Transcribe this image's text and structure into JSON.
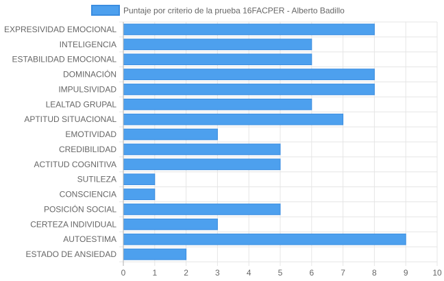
{
  "colors": {
    "bar_fill": "#4da0ee",
    "bar_stroke": "#3b8de0",
    "grid": "#e5e5e5",
    "axis": "#b0b0b0",
    "text": "#666666"
  },
  "chart_data": {
    "type": "bar",
    "orientation": "horizontal",
    "categories": [
      "EXPRESIVIDAD EMOCIONAL",
      "INTELIGENCIA",
      "ESTABILIDAD EMOCIONAL",
      "DOMINACIÓN",
      "IMPULSIVIDAD",
      "LEALTAD GRUPAL",
      "APTITUD SITUACIONAL",
      "EMOTIVIDAD",
      "CREDIBILIDAD",
      "ACTITUD COGNITIVA",
      "SUTILEZA",
      "CONSCIENCIA",
      "POSICIÓN SOCIAL",
      "CERTEZA INDIVIDUAL",
      "AUTOESTIMA",
      "ESTADO DE ANSIEDAD"
    ],
    "series": [
      {
        "name": "Puntaje por criterio de la prueba 16FACPER - Alberto Badillo",
        "values": [
          8,
          6,
          6,
          8,
          8,
          6,
          7,
          3,
          5,
          5,
          1,
          1,
          5,
          3,
          9,
          2
        ]
      }
    ],
    "xlim": [
      0,
      10
    ],
    "x_ticks": [
      "0",
      "1",
      "2",
      "3",
      "4",
      "5",
      "6",
      "7",
      "8",
      "9",
      "10"
    ],
    "grid": true,
    "legend": "top-center"
  }
}
